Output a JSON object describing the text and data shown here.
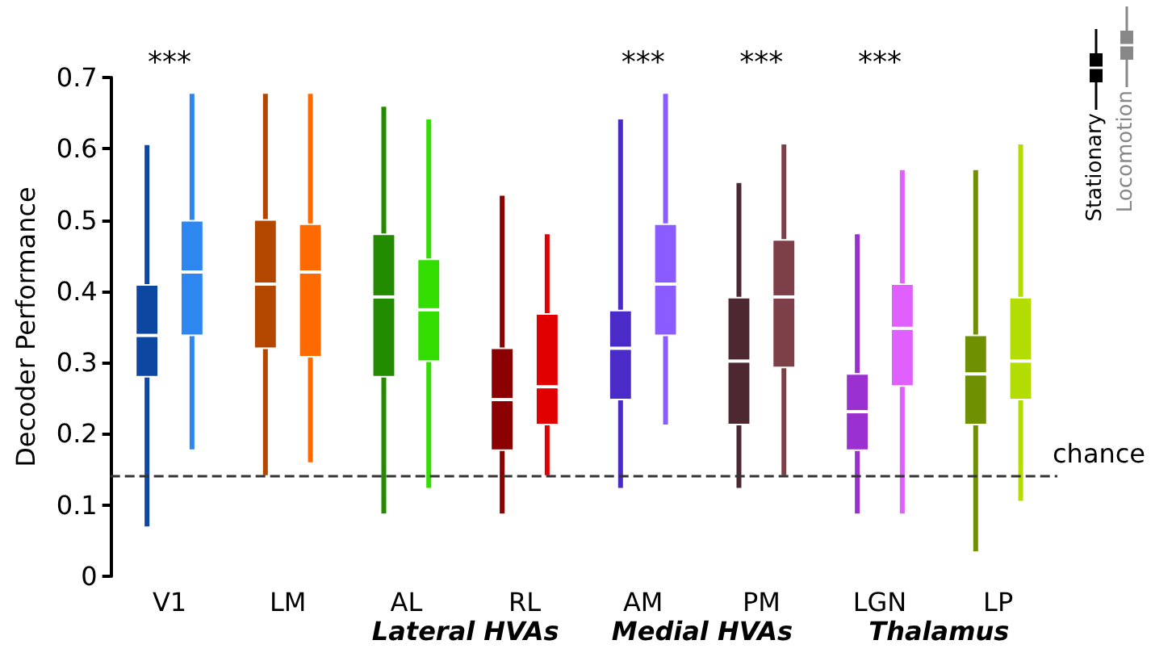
{
  "chart_data": {
    "type": "box",
    "ylabel": "Decoder Performance",
    "categories": [
      "V1",
      "LM",
      "AL",
      "RL",
      "AM",
      "PM",
      "LGN",
      "LP"
    ],
    "ylim": [
      0,
      0.7
    ],
    "yticks": [
      0,
      0.1,
      0.2,
      0.3,
      0.4,
      0.5,
      0.6,
      0.7
    ],
    "grid": false,
    "legend": "top right",
    "series": [
      {
        "name": "Stationary",
        "color": "#000000",
        "colors": [
          "#0d47a1",
          "#b34700",
          "#228b00",
          "#8b0000",
          "#4b2bc8",
          "#4d2830",
          "#9b30d0",
          "#6f9000"
        ],
        "boxes": [
          {
            "low": 0.07,
            "q1": 0.28,
            "median": 0.338,
            "q3": 0.409,
            "high": 0.605
          },
          {
            "low": 0.142,
            "q1": 0.32,
            "median": 0.41,
            "q3": 0.5,
            "high": 0.677
          },
          {
            "low": 0.088,
            "q1": 0.28,
            "median": 0.392,
            "q3": 0.48,
            "high": 0.659
          },
          {
            "low": 0.088,
            "q1": 0.177,
            "median": 0.248,
            "q3": 0.32,
            "high": 0.534
          },
          {
            "low": 0.124,
            "q1": 0.248,
            "median": 0.32,
            "q3": 0.373,
            "high": 0.641
          },
          {
            "low": 0.124,
            "q1": 0.213,
            "median": 0.302,
            "q3": 0.391,
            "high": 0.552
          },
          {
            "low": 0.088,
            "q1": 0.177,
            "median": 0.231,
            "q3": 0.284,
            "high": 0.48
          },
          {
            "low": 0.035,
            "q1": 0.213,
            "median": 0.284,
            "q3": 0.338,
            "high": 0.57
          }
        ]
      },
      {
        "name": "Locomotion",
        "color": "#888888",
        "colors": [
          "#2e86f0",
          "#ff6a00",
          "#33dd00",
          "#e00000",
          "#8b5cff",
          "#7e4048",
          "#e060ff",
          "#b3dd00"
        ],
        "boxes": [
          {
            "low": 0.178,
            "q1": 0.338,
            "median": 0.427,
            "q3": 0.499,
            "high": 0.677
          },
          {
            "low": 0.16,
            "q1": 0.308,
            "median": 0.427,
            "q3": 0.494,
            "high": 0.677
          },
          {
            "low": 0.124,
            "q1": 0.302,
            "median": 0.374,
            "q3": 0.445,
            "high": 0.641
          },
          {
            "low": 0.142,
            "q1": 0.213,
            "median": 0.266,
            "q3": 0.368,
            "high": 0.48
          },
          {
            "low": 0.213,
            "q1": 0.338,
            "median": 0.41,
            "q3": 0.494,
            "high": 0.677
          },
          {
            "low": 0.142,
            "q1": 0.293,
            "median": 0.392,
            "q3": 0.472,
            "high": 0.606
          },
          {
            "low": 0.088,
            "q1": 0.267,
            "median": 0.348,
            "q3": 0.41,
            "high": 0.57
          },
          {
            "low": 0.106,
            "q1": 0.248,
            "median": 0.302,
            "q3": 0.391,
            "high": 0.606
          }
        ]
      }
    ],
    "ref_lines": [
      {
        "axis": "y",
        "value": 0.142,
        "label": "chance",
        "color": "#333333",
        "line_style": "dashed"
      }
    ],
    "annotations": [
      "***",
      "***",
      "***",
      "***",
      "Lateral HVAs",
      "Medial HVAs",
      "Thalamus"
    ]
  }
}
